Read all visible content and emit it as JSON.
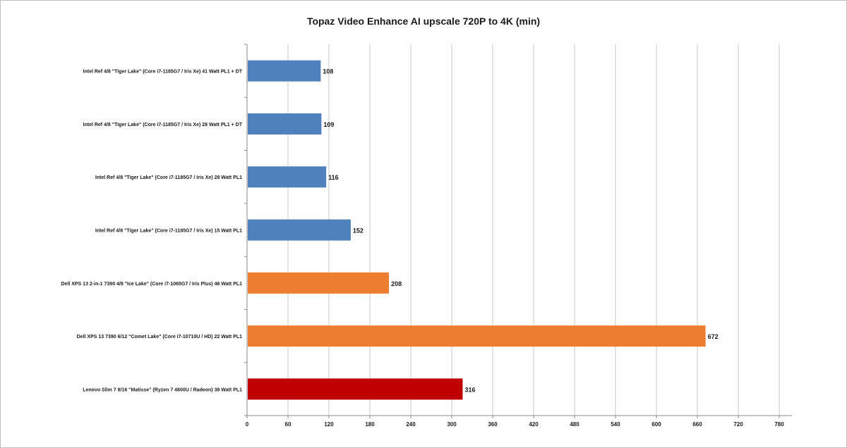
{
  "chart_data": {
    "type": "bar",
    "orientation": "horizontal",
    "title": "Topaz Video Enhance AI upscale 720P to 4K (min)",
    "xlabel": "",
    "ylabel": "",
    "xlim": [
      0,
      780
    ],
    "ticks": [
      0,
      60,
      120,
      180,
      240,
      300,
      360,
      420,
      480,
      540,
      600,
      660,
      720,
      780
    ],
    "grid": true,
    "legend": "none",
    "categories": [
      "Intel Ref 4/8 \"Tiger Lake\" (Core i7-1185G7 / Iris Xe) 41 Watt PL1 + DT",
      "Intel Ref 4/8 \"Tiger Lake\" (Core i7-1185G7 / Iris Xe) 28 Watt PL1 + DT",
      "Intel Ref 4/8 \"Tiger Lake\" (Core i7-1185G7 / Iris Xe) 28 Watt PL1",
      "Intel Ref 4/8 \"Tiger Lake\" (Core i7-1185G7 / Iris Xe) 15 Watt PL1",
      "Dell XPS 13 2-in-1 7390 4/8 \"Ice Lake\" (Core i7-1065G7 / Iris Plus) 46 Watt PL1",
      "Dell XPS 13 7390 6/12 \"Comet Lake\" (Core i7-10710U / HD) 22 Watt PL1",
      "Lenovo Slim 7 8/16 \"Matisse\" (Ryzen 7 4800U / Radeon) 38 Watt PL1"
    ],
    "values": [
      108,
      109,
      116,
      152,
      208,
      672,
      316
    ],
    "colors": [
      "#4f81bd",
      "#4f81bd",
      "#4f81bd",
      "#4f81bd",
      "#ed7d31",
      "#ed7d31",
      "#c00000"
    ]
  }
}
